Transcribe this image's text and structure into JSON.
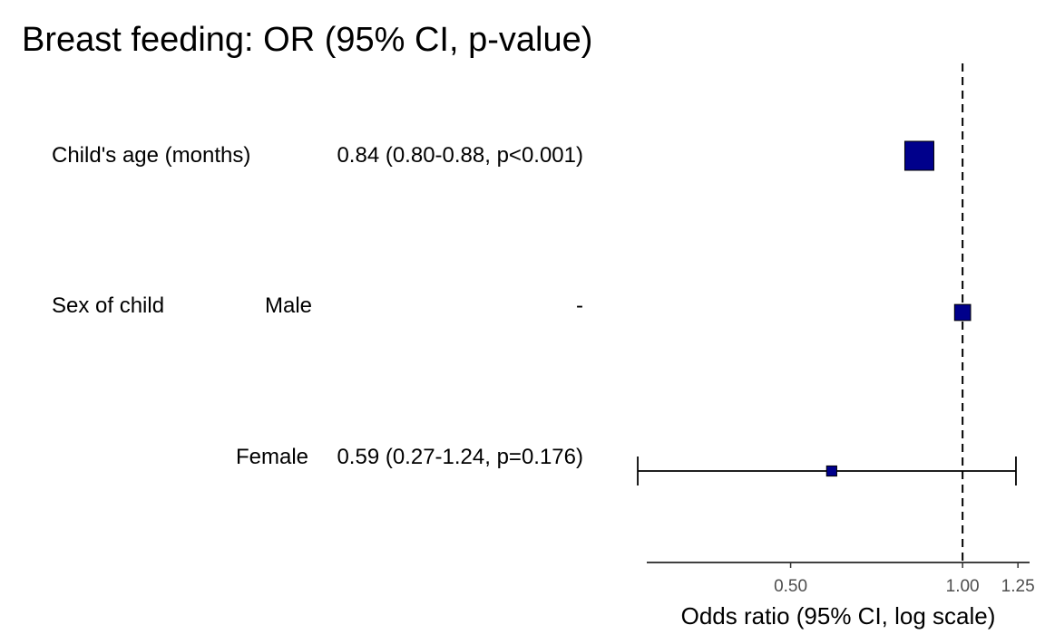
{
  "title": "Breast feeding: OR (95% CI, p-value)",
  "colors": {
    "point": "#00008B",
    "line": "#000000",
    "axis_text": "#4d4d4d"
  },
  "chart_data": {
    "type": "forest",
    "title": "Breast feeding: OR (95% CI, p-value)",
    "xlabel": "Odds ratio (95% CI, log scale)",
    "x_scale": "log",
    "xlim": [
      0.28,
      1.31
    ],
    "ticks": [
      {
        "value": 0.5,
        "label": "0.50"
      },
      {
        "value": 1.0,
        "label": "1.00"
      },
      {
        "value": 1.25,
        "label": "1.25"
      }
    ],
    "reference_line": 1.0,
    "rows": [
      {
        "variable": "Child's age (months)",
        "level": "",
        "text": "0.84 (0.80-0.88, p<0.001)",
        "or": 0.84,
        "lower": 0.8,
        "upper": 0.88,
        "weight": 1.0
      },
      {
        "variable": "Sex of child",
        "level": "Male",
        "text": "-",
        "or": 1.0,
        "lower": null,
        "upper": null,
        "weight": 0.45
      },
      {
        "variable": "",
        "level": "Female",
        "text": "0.59 (0.27-1.24, p=0.176)",
        "or": 0.59,
        "lower": 0.27,
        "upper": 1.24,
        "weight": 0.2
      }
    ]
  }
}
